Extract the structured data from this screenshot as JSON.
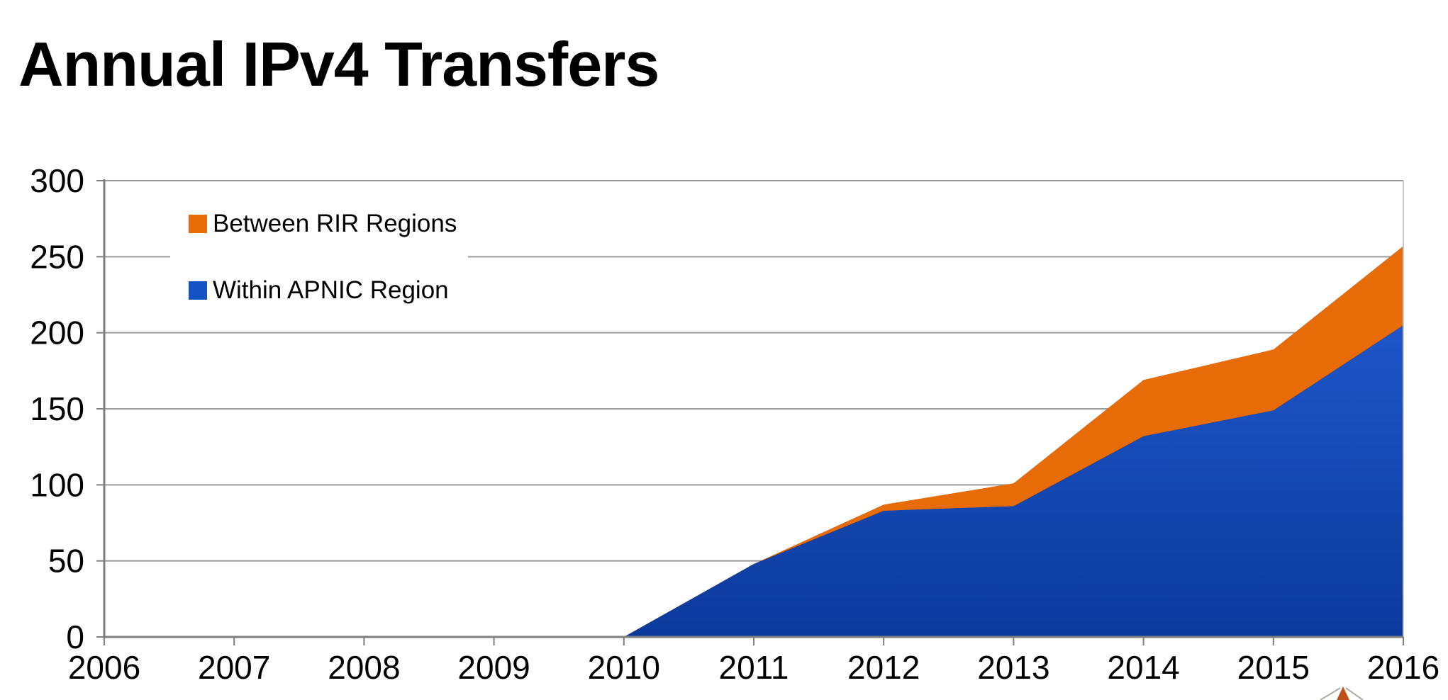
{
  "title": "Annual IPv4 Transfers",
  "legend": [
    {
      "label": "Between RIR Regions",
      "color": "#e76c08"
    },
    {
      "label": "Within APNIC Region",
      "color": "#1453c5"
    }
  ],
  "colors": {
    "orange_area": "#e76c08",
    "blue_area_top": "#1e55c8",
    "blue_area_bottom": "#0b3a9c",
    "gridline": "#9a9a9a",
    "axis": "#7f7f7f",
    "right_border": "#c9c9c9",
    "logo_orange": "#c0511a",
    "logo_gray": "#b0aaa6"
  },
  "chart_data": {
    "type": "area",
    "stacked": true,
    "categories": [
      "2006",
      "2007",
      "2008",
      "2009",
      "2010",
      "2011",
      "2012",
      "2013",
      "2014",
      "2015",
      "2016"
    ],
    "series": [
      {
        "name": "Within APNIC Region",
        "color": "#1453c5",
        "values": [
          0,
          0,
          0,
          0,
          0,
          48,
          83,
          86,
          132,
          149,
          205
        ]
      },
      {
        "name": "Between RIR Regions",
        "color": "#e76c08",
        "values": [
          0,
          0,
          0,
          0,
          0,
          0,
          4,
          15,
          37,
          40,
          52
        ]
      }
    ],
    "title": "Annual IPv4 Transfers",
    "xlabel": "",
    "ylabel": "",
    "ylim": [
      0,
      300
    ],
    "yticks": [
      0,
      50,
      100,
      150,
      200,
      250,
      300
    ],
    "grid": true,
    "legend_position": "top-left"
  }
}
